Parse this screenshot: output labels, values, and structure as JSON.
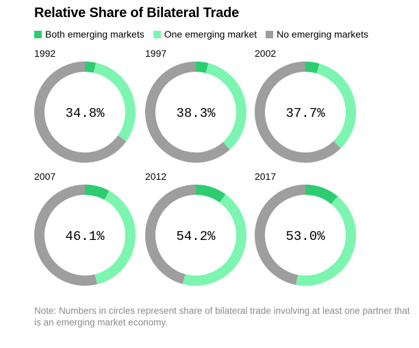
{
  "title": "Relative Share of Bilateral Trade",
  "legend": [
    {
      "label": "Both emerging markets",
      "color": "#2ecc71"
    },
    {
      "label": "One emerging market",
      "color": "#7cf5b0"
    },
    {
      "label": "No emerging markets",
      "color": "#9e9e9e"
    }
  ],
  "note": "Note: Numbers in circles represent share of bilateral trade involving at least one partner that is an emerging market economy.",
  "chart_data": {
    "type": "pie",
    "variant": "donut",
    "title": "Relative Share of Bilateral Trade",
    "series_names": [
      "Both emerging markets",
      "One emerging market",
      "No emerging markets"
    ],
    "colors": {
      "both": "#2ecc71",
      "one": "#7cf5b0",
      "none": "#9e9e9e"
    },
    "charts": [
      {
        "year": "1992",
        "label": "34.8%",
        "both": 3.5,
        "one": 31.3,
        "none": 65.2
      },
      {
        "year": "1997",
        "label": "38.3%",
        "both": 4.0,
        "one": 34.3,
        "none": 61.7
      },
      {
        "year": "2002",
        "label": "37.7%",
        "both": 4.5,
        "one": 33.2,
        "none": 62.3
      },
      {
        "year": "2007",
        "label": "46.1%",
        "both": 8.0,
        "one": 38.1,
        "none": 53.9
      },
      {
        "year": "2012",
        "label": "54.2%",
        "both": 10.0,
        "one": 44.2,
        "none": 45.8
      },
      {
        "year": "2017",
        "label": "53.0%",
        "both": 11.0,
        "one": 42.0,
        "none": 47.0
      }
    ]
  }
}
